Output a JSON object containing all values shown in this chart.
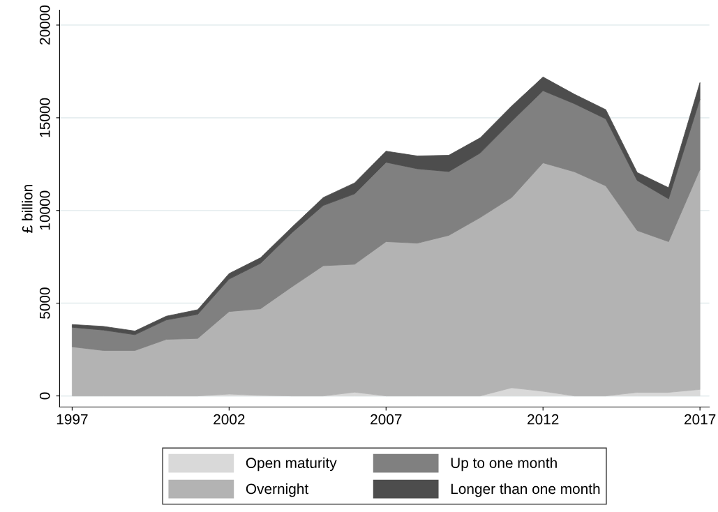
{
  "chart_data": {
    "type": "area",
    "stacked": true,
    "ylabel": "£ billion",
    "x": [
      1997,
      1998,
      1999,
      2000,
      2001,
      2002,
      2003,
      2004,
      2005,
      2006,
      2007,
      2008,
      2009,
      2010,
      2011,
      2012,
      2013,
      2014,
      2015,
      2016,
      2017
    ],
    "series": [
      {
        "name": "Open maturity",
        "color": "#d9d9d9",
        "values": [
          0,
          0,
          0,
          0,
          0,
          100,
          30,
          0,
          0,
          200,
          0,
          0,
          0,
          0,
          440,
          250,
          0,
          0,
          190,
          190,
          350
        ]
      },
      {
        "name": "Overnight",
        "color": "#b3b3b3",
        "values": [
          2650,
          2450,
          2450,
          3050,
          3100,
          4450,
          4670,
          5880,
          7020,
          6900,
          8320,
          8240,
          8660,
          9620,
          10260,
          12320,
          12090,
          11330,
          8730,
          8130,
          11870
        ]
      },
      {
        "name": "Up to one month",
        "color": "#808080",
        "values": [
          1050,
          1100,
          850,
          1050,
          1300,
          1750,
          2450,
          2920,
          3250,
          3800,
          4280,
          4010,
          3440,
          3480,
          4110,
          3890,
          3670,
          3610,
          2700,
          2310,
          3790
        ]
      },
      {
        "name": "Longer than one month",
        "color": "#4d4d4d",
        "values": [
          150,
          200,
          200,
          200,
          250,
          300,
          300,
          300,
          430,
          590,
          600,
          690,
          880,
          820,
          820,
          740,
          510,
          500,
          430,
          600,
          890
        ]
      }
    ],
    "xlim": [
      1996.6,
      2017.3
    ],
    "xticks": [
      1997,
      2002,
      2007,
      2012,
      2017
    ],
    "ylim": [
      -600,
      20800
    ],
    "yticks": [
      0,
      5000,
      10000,
      15000,
      20000
    ],
    "grid": "y",
    "legend": "bottom"
  }
}
